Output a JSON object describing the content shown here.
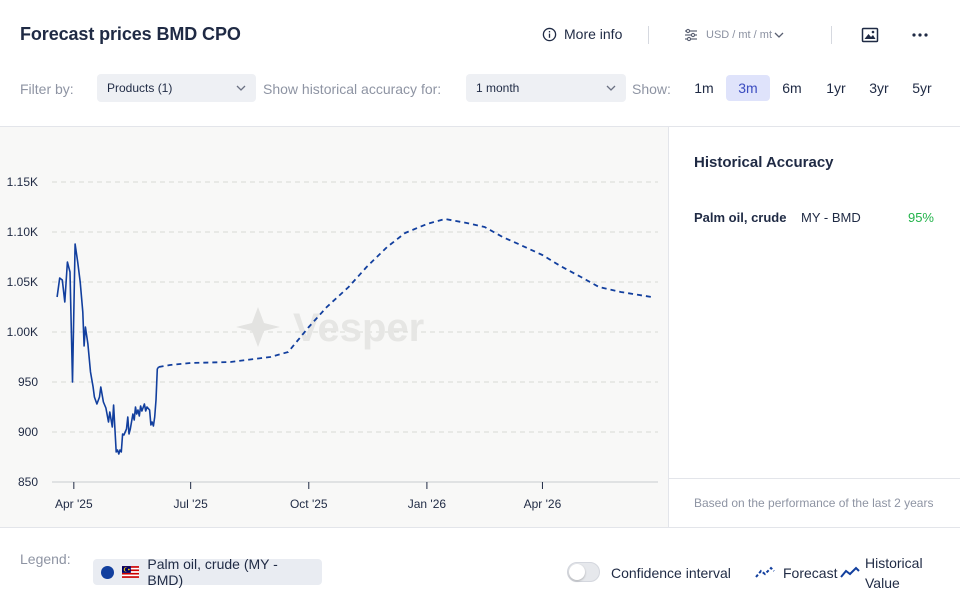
{
  "header": {
    "title": "Forecast prices BMD CPO",
    "more_info_label": "More info",
    "unit_label": "USD / mt / mt"
  },
  "filters": {
    "filter_by_label": "Filter by:",
    "products_value": "Products (1)",
    "historical_accuracy_label": "Show historical accuracy for:",
    "accuracy_value": "1 month",
    "show_label": "Show:",
    "ranges": [
      "1m",
      "3m",
      "6m",
      "1yr",
      "3yr",
      "5yr"
    ],
    "active_range": "3m"
  },
  "watermark": "Vesper",
  "chart_data": {
    "type": "line",
    "y_ticks": [
      "1.15K",
      "1.10K",
      "1.05K",
      "1.00K",
      "950",
      "900",
      "850"
    ],
    "y_tick_values": [
      1150,
      1100,
      1050,
      1000,
      950,
      900,
      850
    ],
    "ylim": [
      850,
      1160
    ],
    "x_ticks": [
      "Apr '25",
      "Jul '25",
      "Oct '25",
      "Jan '26",
      "Apr '26"
    ],
    "x_tick_dates": [
      "2025-04-01",
      "2025-07-01",
      "2025-10-01",
      "2026-01-01",
      "2026-04-01"
    ],
    "xlim": [
      "2025-03-15",
      "2026-06-30"
    ],
    "grid": true,
    "series": [
      {
        "name": "Historical Value",
        "style": "solid",
        "color": "#123f9e",
        "points": [
          [
            "2025-03-19",
            1035
          ],
          [
            "2025-03-21",
            1054
          ],
          [
            "2025-03-23",
            1052
          ],
          [
            "2025-03-25",
            1030
          ],
          [
            "2025-03-27",
            1070
          ],
          [
            "2025-03-29",
            1060
          ],
          [
            "2025-03-31",
            950
          ],
          [
            "2025-04-02",
            1088
          ],
          [
            "2025-04-04",
            1070
          ],
          [
            "2025-04-06",
            1050
          ],
          [
            "2025-04-08",
            1020
          ],
          [
            "2025-04-09",
            986
          ],
          [
            "2025-04-10",
            1005
          ],
          [
            "2025-04-12",
            988
          ],
          [
            "2025-04-14",
            960
          ],
          [
            "2025-04-16",
            945
          ],
          [
            "2025-04-17",
            935
          ],
          [
            "2025-04-19",
            928
          ],
          [
            "2025-04-21",
            935
          ],
          [
            "2025-04-22",
            945
          ],
          [
            "2025-04-24",
            930
          ],
          [
            "2025-04-26",
            924
          ],
          [
            "2025-04-28",
            910
          ],
          [
            "2025-04-29",
            920
          ],
          [
            "2025-05-01",
            905
          ],
          [
            "2025-05-02",
            927
          ],
          [
            "2025-05-04",
            880
          ],
          [
            "2025-05-05",
            882
          ],
          [
            "2025-05-06",
            878
          ],
          [
            "2025-05-07",
            882
          ],
          [
            "2025-05-08",
            880
          ],
          [
            "2025-05-09",
            898
          ],
          [
            "2025-05-10",
            897
          ],
          [
            "2025-05-11",
            900
          ],
          [
            "2025-05-12",
            903
          ],
          [
            "2025-05-13",
            915
          ],
          [
            "2025-05-14",
            898
          ],
          [
            "2025-05-15",
            903
          ],
          [
            "2025-05-17",
            918
          ],
          [
            "2025-05-18",
            912
          ],
          [
            "2025-05-19",
            925
          ],
          [
            "2025-05-20",
            918
          ],
          [
            "2025-05-21",
            922
          ],
          [
            "2025-05-22",
            916
          ],
          [
            "2025-05-23",
            926
          ],
          [
            "2025-05-24",
            921
          ],
          [
            "2025-05-26",
            928
          ],
          [
            "2025-05-27",
            921
          ],
          [
            "2025-05-28",
            925
          ],
          [
            "2025-05-30",
            922
          ],
          [
            "2025-05-31",
            907
          ],
          [
            "2025-06-01",
            910
          ],
          [
            "2025-06-02",
            906
          ],
          [
            "2025-06-03",
            915
          ],
          [
            "2025-06-04",
            932
          ],
          [
            "2025-06-05",
            963
          ],
          [
            "2025-06-06",
            965
          ]
        ]
      },
      {
        "name": "Forecast",
        "style": "dashed",
        "color": "#123f9e",
        "points": [
          [
            "2025-06-06",
            965
          ],
          [
            "2025-06-15",
            967
          ],
          [
            "2025-07-01",
            969
          ],
          [
            "2025-08-01",
            970
          ],
          [
            "2025-09-01",
            975
          ],
          [
            "2025-09-15",
            980
          ],
          [
            "2025-10-01",
            1005
          ],
          [
            "2025-10-15",
            1025
          ],
          [
            "2025-11-01",
            1045
          ],
          [
            "2025-11-15",
            1065
          ],
          [
            "2025-12-01",
            1085
          ],
          [
            "2025-12-15",
            1099
          ],
          [
            "2026-01-01",
            1108
          ],
          [
            "2026-01-15",
            1113
          ],
          [
            "2026-02-01",
            1109
          ],
          [
            "2026-02-15",
            1105
          ],
          [
            "2026-03-01",
            1095
          ],
          [
            "2026-03-15",
            1087
          ],
          [
            "2026-04-01",
            1077
          ],
          [
            "2026-04-15",
            1066
          ],
          [
            "2026-05-01",
            1055
          ],
          [
            "2026-05-15",
            1045
          ],
          [
            "2026-06-01",
            1040
          ],
          [
            "2026-06-25",
            1035
          ]
        ]
      }
    ]
  },
  "historical_accuracy": {
    "title": "Historical Accuracy",
    "product": "Palm oil, crude",
    "market": "MY - BMD",
    "value": "95%",
    "footer": "Based on the performance of the last 2 years"
  },
  "legend": {
    "label": "Legend:",
    "chip_label": "Palm oil, crude (MY - BMD)",
    "confidence_label": "Confidence interval",
    "forecast_label": "Forecast",
    "historical_line1": "Historical",
    "historical_line2": "Value"
  },
  "colors": {
    "series": "#123f9e",
    "accent": "#3b4cc0",
    "good": "#22b34a"
  }
}
